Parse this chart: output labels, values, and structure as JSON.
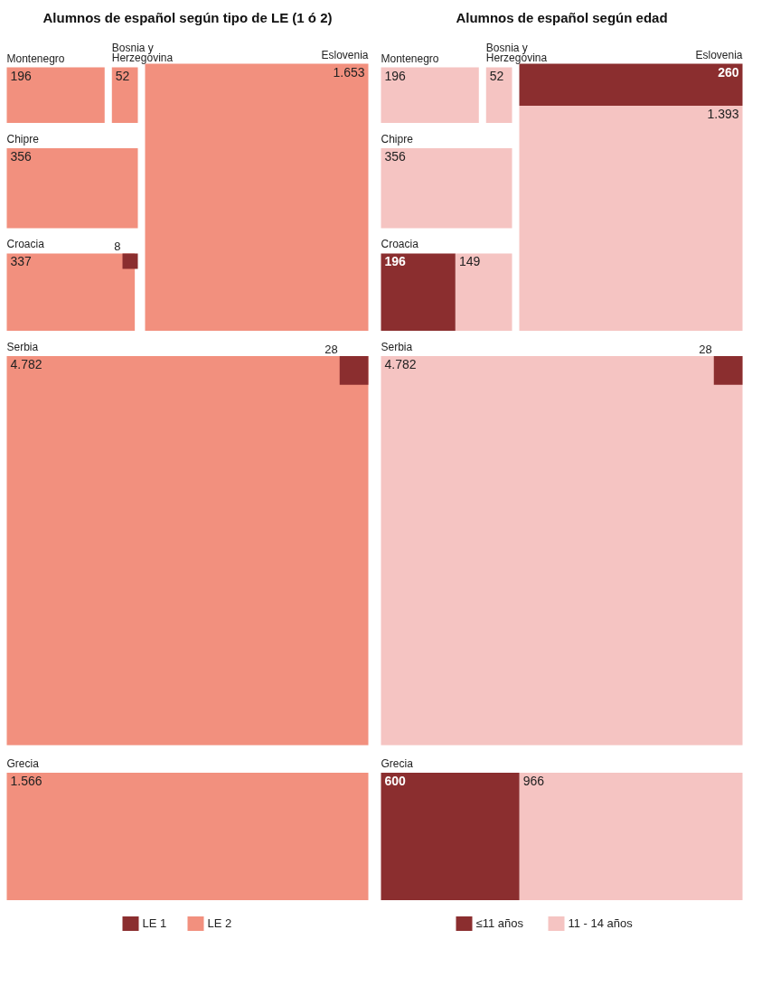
{
  "chart_data": [
    {
      "type": "other",
      "title": "Alumnos de español según tipo de LE (1 ó 2)",
      "categories": [
        "Montenegro",
        "Bosnia y Herzegovina",
        "Eslovenia",
        "Chipre",
        "Croacia",
        "Serbia",
        "Grecia"
      ],
      "legend": "bottom",
      "series": [
        {
          "name": "LE 1",
          "color": "#8b2e2f",
          "values": [
            null,
            null,
            null,
            null,
            8,
            28,
            null
          ],
          "value_labels": [
            null,
            null,
            null,
            null,
            "8",
            "28",
            null
          ]
        },
        {
          "name": "LE 2",
          "color": "#f2907e",
          "values": [
            196,
            52,
            1653,
            356,
            337,
            4782,
            1566
          ],
          "value_labels": [
            "196",
            "52",
            "1.653",
            "356",
            "337",
            "4.782",
            "1.566"
          ]
        }
      ]
    },
    {
      "type": "other",
      "title": "Alumnos de español según edad",
      "categories": [
        "Montenegro",
        "Bosnia y Herzegovina",
        "Eslovenia",
        "Chipre",
        "Croacia",
        "Serbia",
        "Grecia"
      ],
      "legend": "bottom",
      "series": [
        {
          "name": "≤11 años",
          "color": "#8b2e2f",
          "values": [
            null,
            null,
            260,
            null,
            196,
            28,
            600
          ],
          "value_labels": [
            null,
            null,
            "260",
            null,
            "196",
            "28",
            "600"
          ]
        },
        {
          "name": "11 - 14 años",
          "color": "#f5c4c2",
          "values": [
            196,
            52,
            1393,
            356,
            149,
            4782,
            966
          ],
          "value_labels": [
            "196",
            "52",
            "1.393",
            "356",
            "149",
            "4.782",
            "966"
          ]
        }
      ]
    }
  ]
}
